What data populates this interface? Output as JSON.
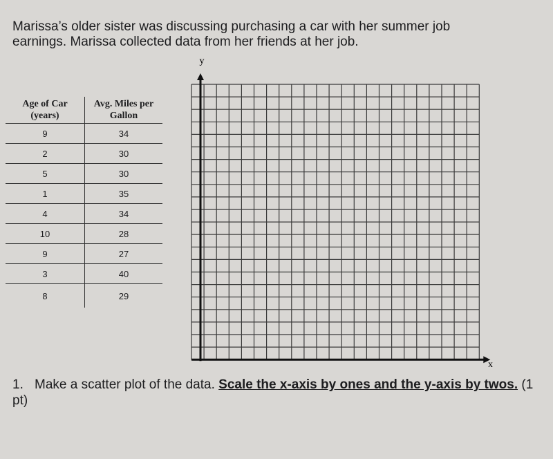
{
  "intro": [
    "Marissa’s older sister was discussing purchasing a car with her summer job",
    "earnings.  Marissa collected data from her friends at her job."
  ],
  "table": {
    "headers": [
      "Age of Car (years)",
      "Avg. Miles per Gallon"
    ],
    "rows": [
      [
        "9",
        "34"
      ],
      [
        "2",
        "30"
      ],
      [
        "5",
        "30"
      ],
      [
        "1",
        "35"
      ],
      [
        "4",
        "34"
      ],
      [
        "10",
        "28"
      ],
      [
        "9",
        "27"
      ],
      [
        "3",
        "40"
      ],
      [
        "8",
        "29"
      ]
    ]
  },
  "graph": {
    "y_label": "y",
    "x_label": "x"
  },
  "question": {
    "number": "1.",
    "text": "Make a scatter plot of the data.",
    "emphasis": "Scale the x-axis by ones and the y-axis by twos.",
    "points": "(1 pt)"
  }
}
